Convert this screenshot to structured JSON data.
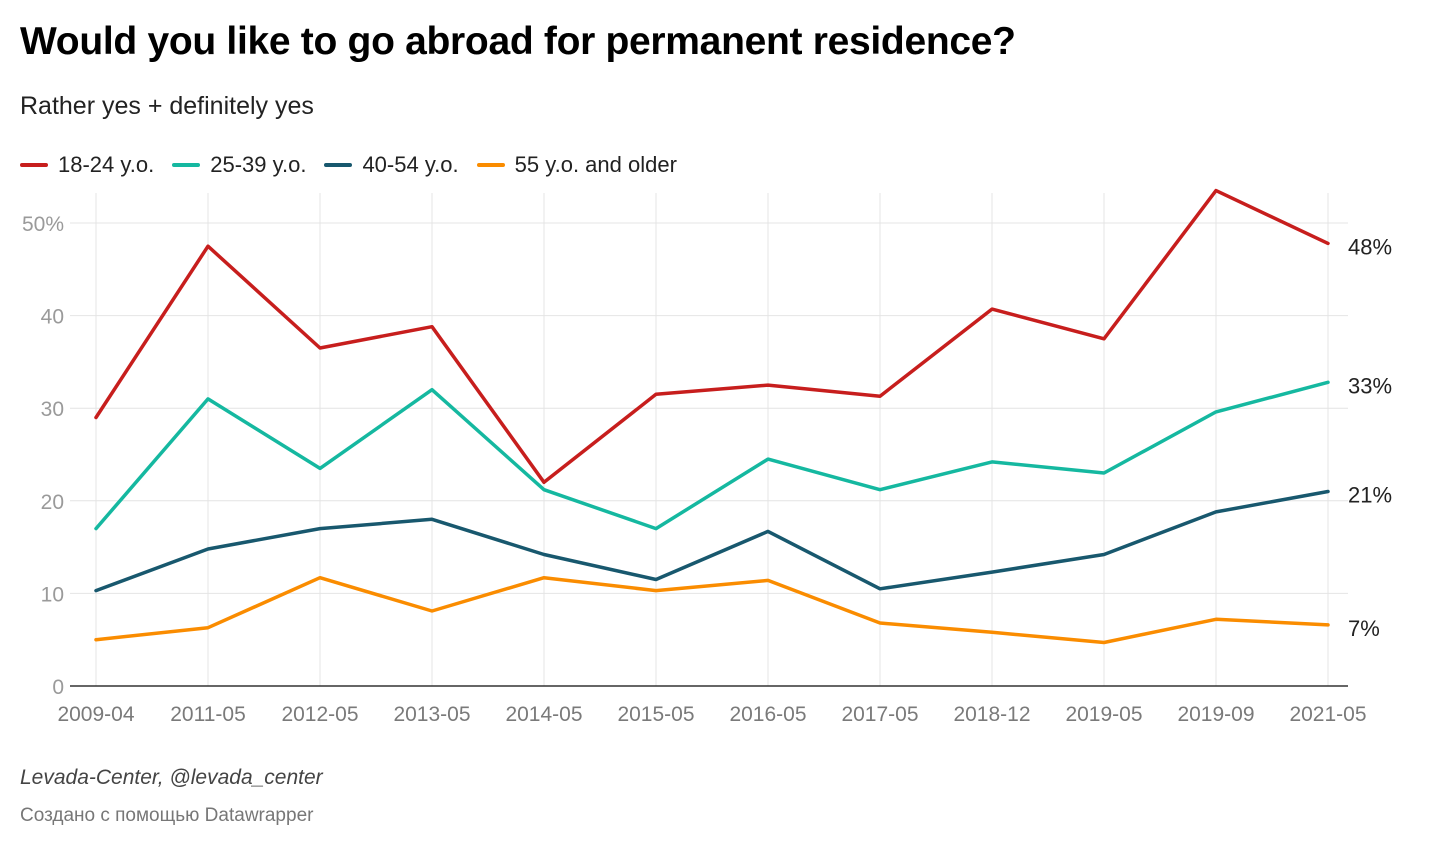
{
  "header": {
    "title": "Would you like to go abroad for permanent residence?",
    "subtitle": "Rather yes + definitely yes"
  },
  "footer": {
    "source": "Levada-Center, @levada_center",
    "credit": "Создано с помощью Datawrapper"
  },
  "chart_data": {
    "type": "line",
    "title": "Would you like to go abroad for permanent residence?",
    "subtitle": "Rather yes + definitely yes",
    "x": [
      "2009-04",
      "2011-05",
      "2012-05",
      "2013-05",
      "2014-05",
      "2015-05",
      "2016-05",
      "2017-05",
      "2018-12",
      "2019-05",
      "2019-09",
      "2021-05"
    ],
    "y_ticks": [
      "0",
      "10",
      "20",
      "30",
      "40",
      "50%"
    ],
    "ylim": [
      0,
      50
    ],
    "grid": true,
    "legend_position": "top-left",
    "series": [
      {
        "name": "18-24 y.o.",
        "color": "#c71e1d",
        "end_label": "48%",
        "values": [
          29,
          47.5,
          36.5,
          38.8,
          22,
          31.5,
          32.5,
          31.3,
          40.7,
          37.5,
          53.5,
          47.8
        ]
      },
      {
        "name": "25-39 y.o.",
        "color": "#15b8a0",
        "end_label": "33%",
        "values": [
          17,
          31,
          23.5,
          32,
          21.2,
          17,
          24.5,
          21.2,
          24.2,
          23,
          29.6,
          32.8
        ]
      },
      {
        "name": "40-54 y.o.",
        "color": "#18586e",
        "end_label": "21%",
        "values": [
          10.3,
          14.8,
          17,
          18,
          14.2,
          11.5,
          16.7,
          10.5,
          12.3,
          14.2,
          18.8,
          21
        ]
      },
      {
        "name": "55 y.o. and older",
        "color": "#fa8c00",
        "end_label": "7%",
        "values": [
          5,
          6.3,
          11.7,
          8.1,
          11.7,
          10.3,
          11.4,
          6.8,
          5.8,
          4.7,
          7.2,
          6.6
        ]
      }
    ]
  }
}
